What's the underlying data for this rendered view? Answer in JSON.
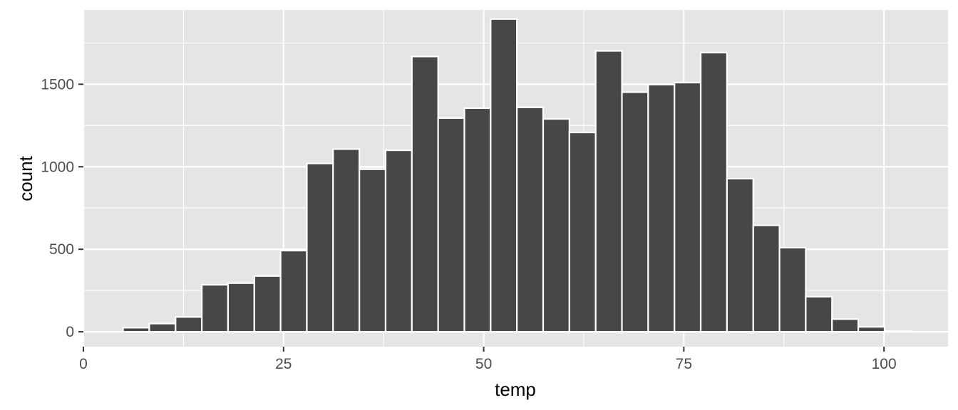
{
  "chart_data": {
    "type": "bar",
    "subtype": "histogram",
    "xlabel": "temp",
    "ylabel": "count",
    "xlim": [
      0,
      108
    ],
    "ylim": [
      -90,
      1950
    ],
    "x_ticks": [
      "0",
      "25",
      "50",
      "75",
      "100"
    ],
    "y_ticks": [
      "0",
      "500",
      "1000",
      "1500"
    ],
    "grid": true,
    "bin_width": 3.28,
    "bins": [
      {
        "x_start": 4.95,
        "x_end": 8.23,
        "count": 25
      },
      {
        "x_start": 8.23,
        "x_end": 11.51,
        "count": 50
      },
      {
        "x_start": 11.51,
        "x_end": 14.79,
        "count": 90
      },
      {
        "x_start": 14.79,
        "x_end": 18.07,
        "count": 285
      },
      {
        "x_start": 18.07,
        "x_end": 21.35,
        "count": 295
      },
      {
        "x_start": 21.35,
        "x_end": 24.63,
        "count": 338
      },
      {
        "x_start": 24.63,
        "x_end": 27.91,
        "count": 492
      },
      {
        "x_start": 27.91,
        "x_end": 31.19,
        "count": 1020
      },
      {
        "x_start": 31.19,
        "x_end": 34.47,
        "count": 1107
      },
      {
        "x_start": 34.47,
        "x_end": 37.75,
        "count": 985
      },
      {
        "x_start": 37.75,
        "x_end": 41.03,
        "count": 1100
      },
      {
        "x_start": 41.03,
        "x_end": 44.31,
        "count": 1668
      },
      {
        "x_start": 44.31,
        "x_end": 47.59,
        "count": 1295
      },
      {
        "x_start": 47.59,
        "x_end": 50.87,
        "count": 1355
      },
      {
        "x_start": 50.87,
        "x_end": 54.15,
        "count": 1895
      },
      {
        "x_start": 54.15,
        "x_end": 57.43,
        "count": 1360
      },
      {
        "x_start": 57.43,
        "x_end": 60.71,
        "count": 1290
      },
      {
        "x_start": 60.71,
        "x_end": 63.99,
        "count": 1208
      },
      {
        "x_start": 63.99,
        "x_end": 67.27,
        "count": 1702
      },
      {
        "x_start": 67.27,
        "x_end": 70.55,
        "count": 1452
      },
      {
        "x_start": 70.55,
        "x_end": 73.83,
        "count": 1498
      },
      {
        "x_start": 73.83,
        "x_end": 77.11,
        "count": 1510
      },
      {
        "x_start": 77.11,
        "x_end": 80.39,
        "count": 1692
      },
      {
        "x_start": 80.39,
        "x_end": 83.67,
        "count": 928
      },
      {
        "x_start": 83.67,
        "x_end": 86.95,
        "count": 645
      },
      {
        "x_start": 86.95,
        "x_end": 90.23,
        "count": 510
      },
      {
        "x_start": 90.23,
        "x_end": 93.51,
        "count": 213
      },
      {
        "x_start": 93.51,
        "x_end": 96.79,
        "count": 77
      },
      {
        "x_start": 96.79,
        "x_end": 100.07,
        "count": 30
      },
      {
        "x_start": 100.07,
        "x_end": 103.35,
        "count": 4
      }
    ],
    "colors": {
      "panel_background": "#e5e5e5",
      "grid": "#ffffff",
      "bar_fill": "#474747",
      "bar_outline": "#ffffff",
      "tick_text": "#4d4d4d",
      "tick_mark": "#333333",
      "axis_title": "#000000"
    }
  }
}
